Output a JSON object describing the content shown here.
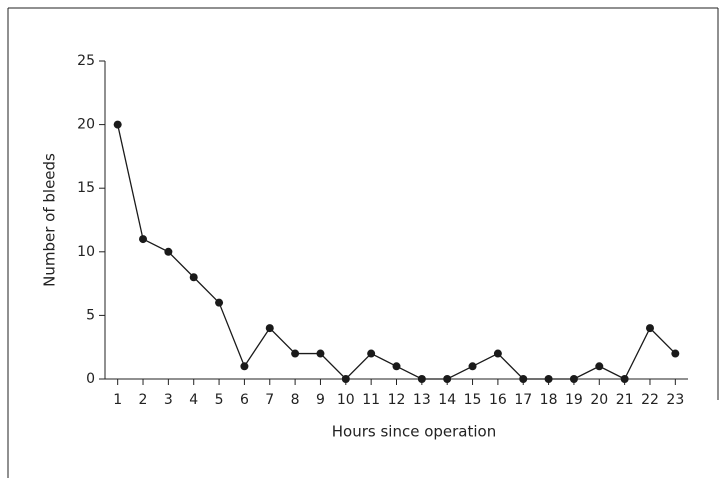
{
  "chart_data": {
    "type": "line",
    "xlabel": "Hours since operation",
    "ylabel": "Number of bleeds",
    "x": [
      1,
      2,
      3,
      4,
      5,
      6,
      7,
      8,
      9,
      10,
      11,
      12,
      13,
      14,
      15,
      16,
      17,
      18,
      19,
      20,
      21,
      22,
      23
    ],
    "series": [
      {
        "color": "#1a1a1a",
        "values": [
          20,
          11,
          10,
          8,
          6,
          1,
          4,
          2,
          2,
          0,
          2,
          1,
          0,
          0,
          1,
          2,
          0,
          0,
          0,
          1,
          0,
          4,
          2
        ]
      }
    ],
    "xlim": [
      0.5,
      23.5
    ],
    "xticks": [
      1,
      2,
      3,
      4,
      5,
      6,
      7,
      8,
      9,
      10,
      11,
      12,
      13,
      14,
      15,
      16,
      17,
      18,
      19,
      20,
      21,
      22,
      23
    ],
    "ylim": [
      0,
      25
    ],
    "yticks": [
      0,
      5,
      10,
      15,
      20,
      25
    ]
  }
}
